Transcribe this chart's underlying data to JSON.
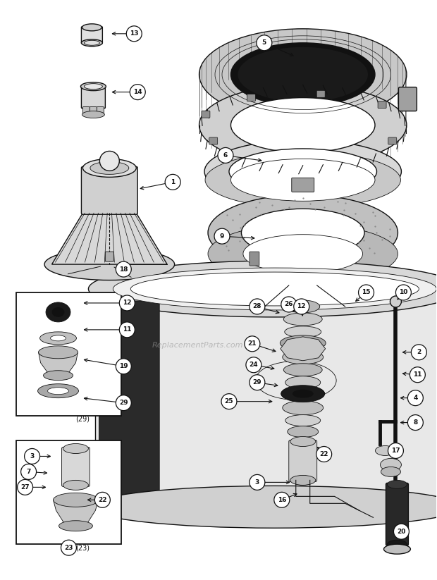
{
  "bg_color": "#ffffff",
  "lc": "#111111",
  "fig_w": 6.2,
  "fig_h": 8.23,
  "watermark": "ReplacementParts.com"
}
